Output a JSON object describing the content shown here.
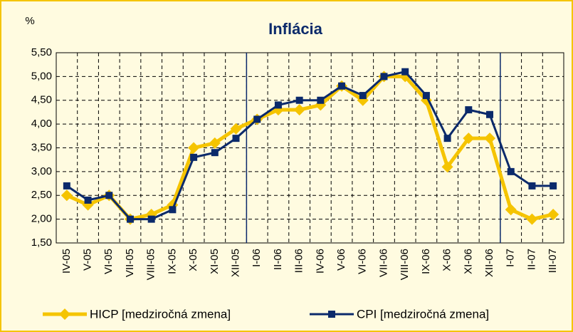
{
  "chart_data": {
    "type": "line",
    "title": "Inflácia",
    "y_unit": "%",
    "categories": [
      "IV-05",
      "V-05",
      "VI-05",
      "VII-05",
      "VIII-05",
      "IX-05",
      "X-05",
      "XI-05",
      "XII-05",
      "I-06",
      "II-06",
      "III-06",
      "IV-06",
      "V-06",
      "VI-06",
      "VII-06",
      "VIII-06",
      "IX-06",
      "X-06",
      "XI-06",
      "XII-06",
      "I-07",
      "II-07",
      "III-07"
    ],
    "series": [
      {
        "name": "HICP [medziročná zmena]",
        "color": "#f5c400",
        "marker": "diamond",
        "values": [
          2.5,
          2.3,
          2.5,
          2.0,
          2.1,
          2.3,
          3.5,
          3.6,
          3.9,
          4.1,
          4.3,
          4.3,
          4.4,
          4.8,
          4.5,
          5.0,
          5.0,
          4.5,
          3.1,
          3.7,
          3.7,
          2.2,
          2.0,
          2.1
        ]
      },
      {
        "name": "CPI [medziročná zmena]",
        "color": "#0b2a6b",
        "marker": "square",
        "values": [
          2.7,
          2.4,
          2.5,
          2.0,
          2.0,
          2.2,
          3.3,
          3.4,
          3.7,
          4.1,
          4.4,
          4.5,
          4.5,
          4.8,
          4.6,
          5.0,
          5.1,
          4.6,
          3.7,
          4.3,
          4.2,
          3.0,
          2.7,
          2.7
        ]
      }
    ],
    "ylim": [
      1.5,
      5.5
    ],
    "yticks": [
      {
        "value": 1.5,
        "label": "1,50"
      },
      {
        "value": 2.0,
        "label": "2,00"
      },
      {
        "value": 2.5,
        "label": "2,50"
      },
      {
        "value": 3.0,
        "label": "3,00"
      },
      {
        "value": 3.5,
        "label": "3,50"
      },
      {
        "value": 4.0,
        "label": "4,00"
      },
      {
        "value": 4.5,
        "label": "4,50"
      },
      {
        "value": 5.0,
        "label": "5,00"
      },
      {
        "value": 5.5,
        "label": "5,50"
      }
    ],
    "grid": true
  }
}
